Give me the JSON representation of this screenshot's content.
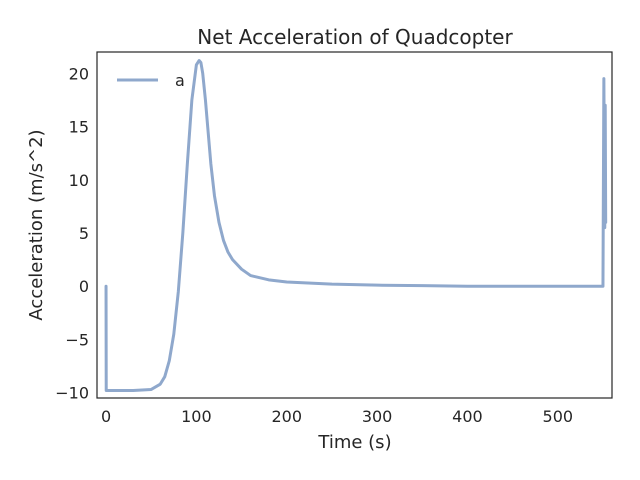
{
  "chart_data": {
    "type": "line",
    "title": "Net Acceleration of Quadcopter",
    "xlabel": "Time (s)",
    "ylabel": "Acceleration (m/s^2)",
    "xlim": [
      -10,
      560
    ],
    "ylim": [
      -10.5,
      22
    ],
    "xticks": [
      0,
      100,
      200,
      300,
      400,
      500
    ],
    "yticks": [
      -10,
      -5,
      0,
      5,
      10,
      15,
      20
    ],
    "xtick_labels": [
      "0",
      "100",
      "200",
      "300",
      "400",
      "500"
    ],
    "ytick_labels": [
      "−10",
      "−5",
      "0",
      "5",
      "10",
      "15",
      "20"
    ],
    "grid": false,
    "legend": "upper-left",
    "series": [
      {
        "name": "a",
        "color": "#8fa8cc",
        "x": [
          0,
          0.2,
          0.5,
          10,
          30,
          50,
          60,
          65,
          70,
          75,
          80,
          85,
          90,
          95,
          100,
          103,
          105,
          107,
          110,
          113,
          116,
          120,
          125,
          130,
          135,
          140,
          150,
          160,
          180,
          200,
          250,
          300,
          350,
          400,
          450,
          500,
          550,
          551,
          551.5,
          552,
          552.5,
          553
        ],
        "y": [
          0,
          -9.8,
          -9.8,
          -9.8,
          -9.8,
          -9.7,
          -9.2,
          -8.5,
          -7.0,
          -4.5,
          -0.5,
          5.0,
          11.5,
          17.5,
          20.8,
          21.2,
          21.0,
          20.0,
          17.5,
          14.5,
          11.5,
          8.5,
          6.0,
          4.3,
          3.2,
          2.5,
          1.6,
          1.0,
          0.6,
          0.4,
          0.2,
          0.1,
          0.05,
          0.0,
          0.0,
          0.0,
          0.0,
          19.5,
          12.0,
          5.5,
          17.0,
          6.0
        ]
      }
    ]
  }
}
